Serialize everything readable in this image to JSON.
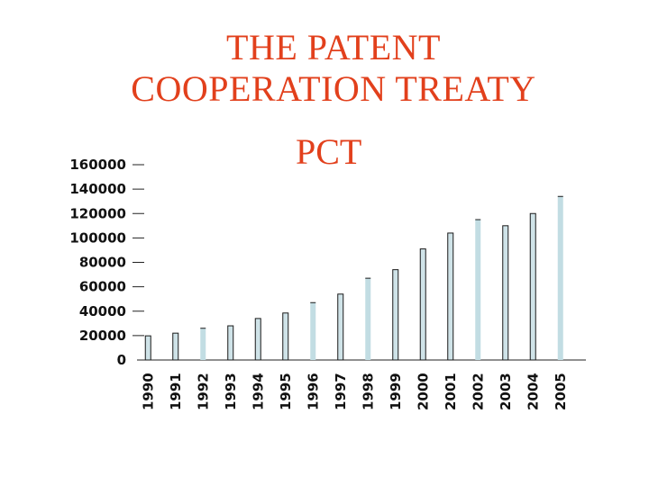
{
  "slide": {
    "title_line1": "THE PATENT",
    "title_line2": "COOPERATION TREATY"
  },
  "chart_data": {
    "type": "bar",
    "title": "PCT",
    "xlabel": "",
    "ylabel": "",
    "categories": [
      "1990",
      "1991",
      "1992",
      "1993",
      "1994",
      "1995",
      "1996",
      "1997",
      "1998",
      "1999",
      "2000",
      "2001",
      "2002",
      "2003",
      "2004",
      "2005"
    ],
    "values": [
      19800,
      22000,
      26000,
      28000,
      34000,
      38500,
      47000,
      54000,
      67000,
      74000,
      91000,
      104000,
      115000,
      110000,
      120000,
      134000
    ],
    "ylim": [
      0,
      160000
    ],
    "yticks": [
      "0",
      "20000",
      "40000",
      "60000",
      "80000",
      "100000",
      "120000",
      "140000",
      "160000"
    ],
    "bar_colors": {
      "outlined": "#cfe3e8",
      "light": "#c2dde3",
      "outline": "#1a1a1a"
    },
    "light_bar_years": [
      "1992",
      "1996",
      "1998",
      "2002",
      "2005"
    ],
    "grid": false,
    "legend": "none"
  }
}
